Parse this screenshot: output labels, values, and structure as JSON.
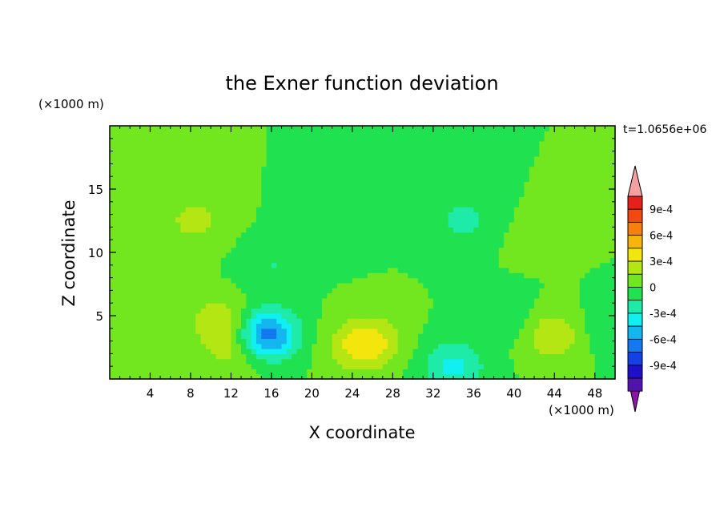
{
  "chart_data": {
    "type": "heatmap",
    "title": "the Exner function deviation",
    "xlabel": "X coordinate",
    "ylabel": "Z coordinate",
    "x_unit": "(×1000 m)",
    "y_unit": "(×1000 m)",
    "time_label": "t=1.0656e+06",
    "xlim": [
      0,
      50
    ],
    "ylim": [
      0,
      20
    ],
    "x_ticks": [
      4,
      8,
      12,
      16,
      20,
      24,
      28,
      32,
      36,
      40,
      44,
      48
    ],
    "y_ticks": [
      5,
      10,
      15
    ],
    "colorbar": {
      "labels": [
        {
          "value": 0.0009,
          "text": "9e-4"
        },
        {
          "value": 0.0006,
          "text": "6e-4"
        },
        {
          "value": 0.0003,
          "text": "3e-4"
        },
        {
          "value": 0,
          "text": "0"
        },
        {
          "value": -0.0003,
          "text": "-3e-4"
        },
        {
          "value": -0.0006,
          "text": "-6e-4"
        },
        {
          "value": -0.0009,
          "text": "-9e-4"
        }
      ],
      "levels": [
        {
          "lo": 0.00105,
          "hi": 0.0012,
          "color": "#f5a0a0"
        },
        {
          "lo": 0.0009,
          "hi": 0.00105,
          "color": "#e8201a"
        },
        {
          "lo": 0.00075,
          "hi": 0.0009,
          "color": "#f04a10"
        },
        {
          "lo": 0.0006,
          "hi": 0.00075,
          "color": "#f77f0c"
        },
        {
          "lo": 0.00045,
          "hi": 0.0006,
          "color": "#f7b40c"
        },
        {
          "lo": 0.0003,
          "hi": 0.00045,
          "color": "#f2e60c"
        },
        {
          "lo": 0.00015,
          "hi": 0.0003,
          "color": "#b4e614"
        },
        {
          "lo": 0,
          "hi": 0.00015,
          "color": "#72e61e"
        },
        {
          "lo": -0.00015,
          "hi": 0,
          "color": "#20e250"
        },
        {
          "lo": -0.0003,
          "hi": -0.00015,
          "color": "#1eeba8"
        },
        {
          "lo": -0.00045,
          "hi": -0.0003,
          "color": "#10f0f0"
        },
        {
          "lo": -0.0006,
          "hi": -0.00045,
          "color": "#14b6f0"
        },
        {
          "lo": -0.00075,
          "hi": -0.0006,
          "color": "#1478f0"
        },
        {
          "lo": -0.0009,
          "hi": -0.00075,
          "color": "#1440e6"
        },
        {
          "lo": -0.00105,
          "hi": -0.0009,
          "color": "#1e10c8"
        },
        {
          "lo": -0.0012,
          "hi": -0.00105,
          "color": "#5014aa"
        },
        {
          "lo": -0.00135,
          "hi": -0.0012,
          "color": "#8c14aa"
        }
      ]
    },
    "field_features": [
      {
        "x": 3,
        "z": 12.5,
        "value": 5e-05
      },
      {
        "x": 8.5,
        "z": 12.5,
        "value": 0.0002
      },
      {
        "x": 11,
        "z": 4.5,
        "value": 0.0003
      },
      {
        "x": 12.5,
        "z": 2,
        "value": 0.0002
      },
      {
        "x": 15.5,
        "z": 3.5,
        "value": -0.0007
      },
      {
        "x": 16,
        "z": 9,
        "value": -0.00015
      },
      {
        "x": 21,
        "z": 12,
        "value": -0.00015
      },
      {
        "x": 24,
        "z": 2.5,
        "value": 0.0002
      },
      {
        "x": 26,
        "z": 3,
        "value": 0.0003
      },
      {
        "x": 30,
        "z": 16,
        "value": -0.0001
      },
      {
        "x": 35,
        "z": 12.5,
        "value": -0.0002
      },
      {
        "x": 34,
        "z": 1,
        "value": -0.00035
      },
      {
        "x": 39,
        "z": 5,
        "value": -0.00015
      },
      {
        "x": 42,
        "z": 11,
        "value": 5e-05
      },
      {
        "x": 44,
        "z": 3.5,
        "value": 0.0003
      },
      {
        "x": 48,
        "z": 4,
        "value": -0.0001
      }
    ]
  }
}
